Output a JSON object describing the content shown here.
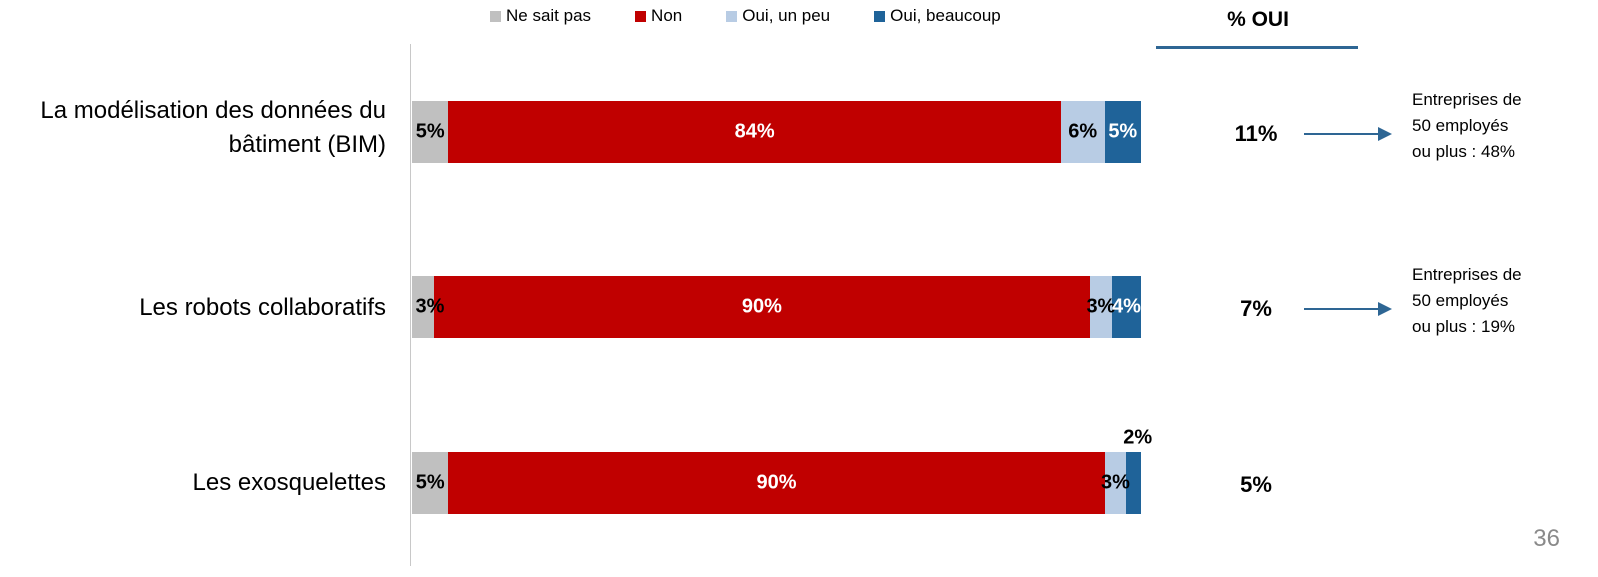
{
  "chart_data": {
    "type": "bar",
    "orientation": "horizontal",
    "stacked": true,
    "categories": [
      "La modélisation des données du bâtiment (BIM)",
      "Les robots collaboratifs",
      "Les exosquelettes"
    ],
    "series": [
      {
        "name": "Ne sait pas",
        "color": "#c0c0c0",
        "values": [
          5,
          3,
          5
        ],
        "labels": [
          "5%",
          "3%",
          "5%"
        ]
      },
      {
        "name": "Non",
        "color": "#c00000",
        "values": [
          84,
          90,
          90
        ],
        "labels": [
          "84%",
          "90%",
          "90%"
        ]
      },
      {
        "name": "Oui, un peu",
        "color": "#b8cce4",
        "values": [
          6,
          3,
          3
        ],
        "labels": [
          "6%",
          "3%",
          "3%"
        ]
      },
      {
        "name": "Oui, beaucoup",
        "color": "#1f6399",
        "values": [
          5,
          4,
          2
        ],
        "labels": [
          "5%",
          "4%",
          "2%"
        ]
      }
    ],
    "legend_position": "top",
    "xlim": [
      0,
      100
    ],
    "grid": false
  },
  "category_labels": [
    [
      "La modélisation des données du",
      "bâtiment (BIM)"
    ],
    [
      "Les robots collaboratifs"
    ],
    [
      "Les exosquelettes"
    ]
  ],
  "oui_column": {
    "header": "% OUI",
    "totals": [
      "11%",
      "7%",
      "5%"
    ]
  },
  "notes": [
    [
      "Entreprises de",
      "50 employés",
      "ou plus : 48%"
    ],
    [
      "Entreprises de",
      "50 employés",
      "ou plus : 19%"
    ]
  ],
  "page_number": "36",
  "colors": {
    "accent": "#2e6694"
  }
}
